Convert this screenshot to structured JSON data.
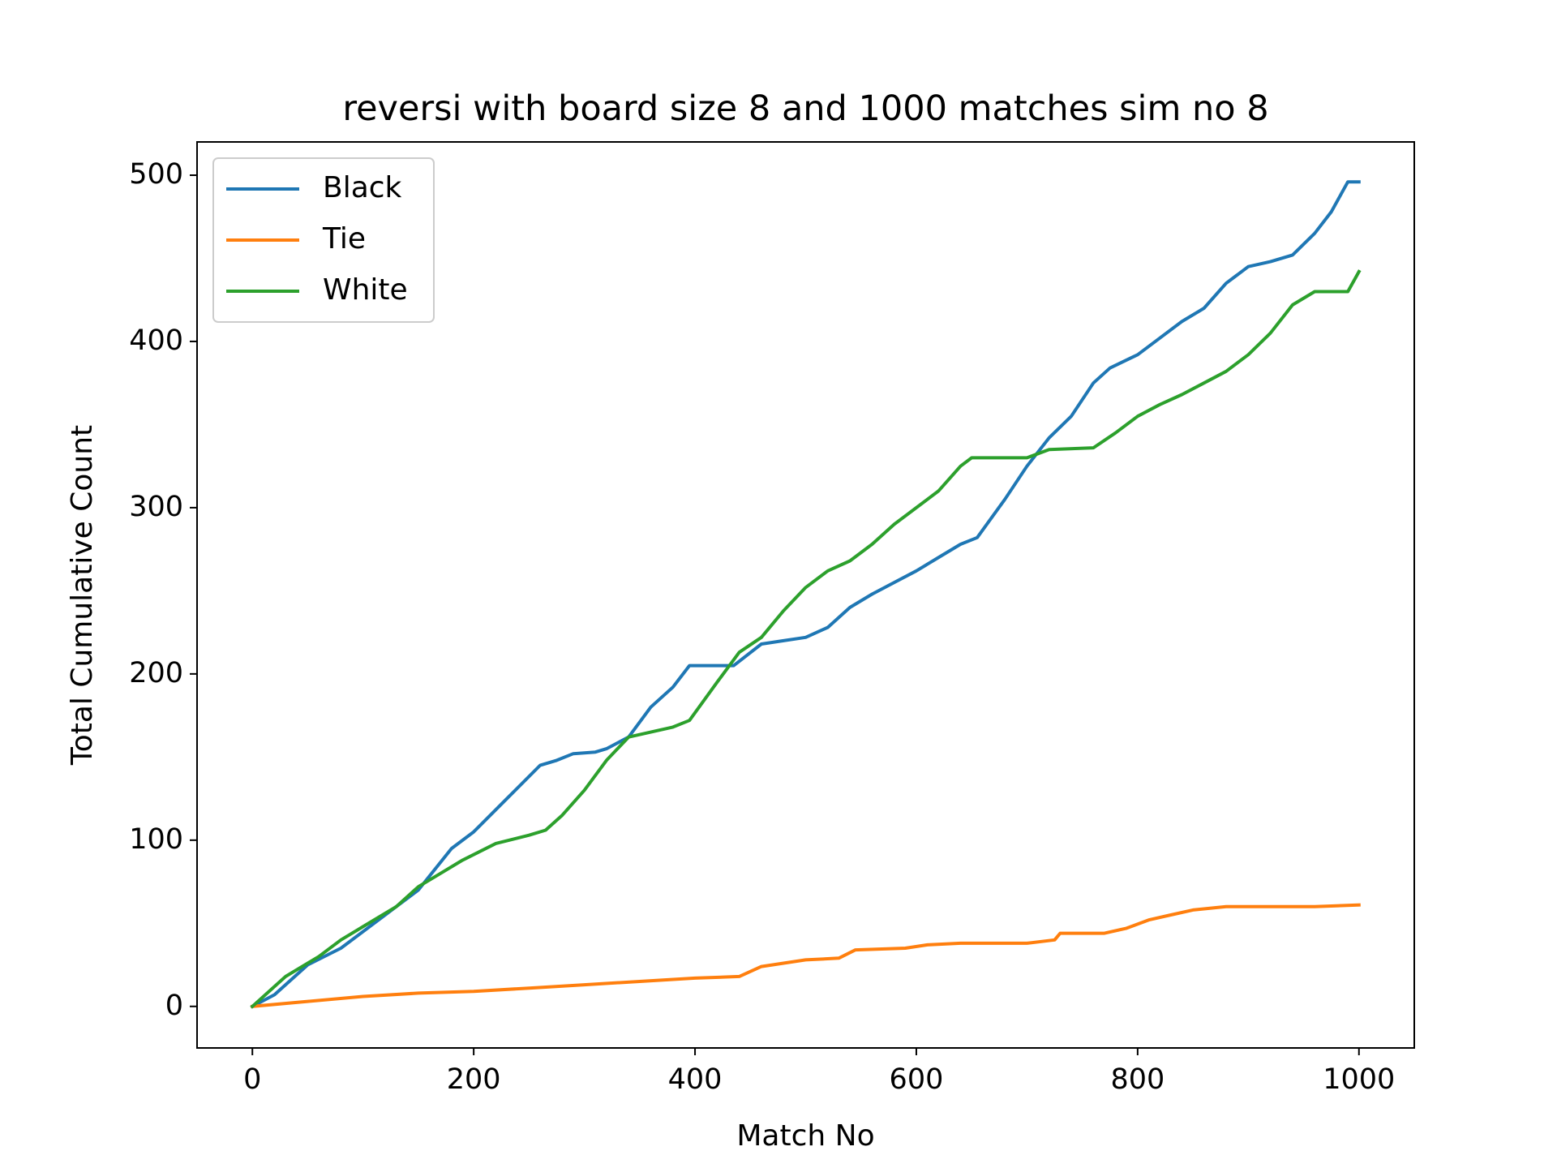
{
  "chart_data": {
    "type": "line",
    "title": "reversi with board size 8 and 1000 matches sim no 8",
    "xlabel": "Match No",
    "ylabel": "Total Cumulative Count",
    "xlim": [
      -50,
      1050
    ],
    "ylim": [
      -25,
      520
    ],
    "xticks": [
      0,
      200,
      400,
      600,
      800,
      1000
    ],
    "yticks": [
      0,
      100,
      200,
      300,
      400,
      500
    ],
    "grid": false,
    "legend": "upper-left",
    "series": [
      {
        "name": "Black",
        "color": "#1f77b4",
        "points": [
          [
            0,
            0
          ],
          [
            20,
            7
          ],
          [
            50,
            25
          ],
          [
            80,
            35
          ],
          [
            120,
            55
          ],
          [
            150,
            70
          ],
          [
            180,
            95
          ],
          [
            200,
            105
          ],
          [
            230,
            125
          ],
          [
            260,
            145
          ],
          [
            275,
            148
          ],
          [
            290,
            152
          ],
          [
            310,
            153
          ],
          [
            320,
            155
          ],
          [
            340,
            162
          ],
          [
            360,
            180
          ],
          [
            380,
            192
          ],
          [
            395,
            205
          ],
          [
            435,
            205
          ],
          [
            460,
            218
          ],
          [
            480,
            220
          ],
          [
            500,
            222
          ],
          [
            520,
            228
          ],
          [
            540,
            240
          ],
          [
            560,
            248
          ],
          [
            580,
            255
          ],
          [
            600,
            262
          ],
          [
            620,
            270
          ],
          [
            640,
            278
          ],
          [
            655,
            282
          ],
          [
            680,
            305
          ],
          [
            700,
            325
          ],
          [
            720,
            342
          ],
          [
            740,
            355
          ],
          [
            760,
            375
          ],
          [
            775,
            384
          ],
          [
            800,
            392
          ],
          [
            820,
            402
          ],
          [
            840,
            412
          ],
          [
            860,
            420
          ],
          [
            880,
            435
          ],
          [
            900,
            445
          ],
          [
            920,
            448
          ],
          [
            940,
            452
          ],
          [
            960,
            465
          ],
          [
            975,
            478
          ],
          [
            990,
            496
          ],
          [
            1000,
            496
          ]
        ]
      },
      {
        "name": "Tie",
        "color": "#ff7f0e",
        "points": [
          [
            0,
            0
          ],
          [
            50,
            3
          ],
          [
            100,
            6
          ],
          [
            150,
            8
          ],
          [
            200,
            9
          ],
          [
            250,
            11
          ],
          [
            300,
            13
          ],
          [
            350,
            15
          ],
          [
            400,
            17
          ],
          [
            440,
            18
          ],
          [
            460,
            24
          ],
          [
            480,
            26
          ],
          [
            500,
            28
          ],
          [
            530,
            29
          ],
          [
            545,
            34
          ],
          [
            590,
            35
          ],
          [
            610,
            37
          ],
          [
            640,
            38
          ],
          [
            700,
            38
          ],
          [
            725,
            40
          ],
          [
            730,
            44
          ],
          [
            770,
            44
          ],
          [
            790,
            47
          ],
          [
            810,
            52
          ],
          [
            830,
            55
          ],
          [
            850,
            58
          ],
          [
            880,
            60
          ],
          [
            960,
            60
          ],
          [
            1000,
            61
          ]
        ]
      },
      {
        "name": "White",
        "color": "#2ca02c",
        "points": [
          [
            0,
            0
          ],
          [
            30,
            18
          ],
          [
            60,
            30
          ],
          [
            80,
            40
          ],
          [
            100,
            48
          ],
          [
            130,
            60
          ],
          [
            150,
            72
          ],
          [
            170,
            80
          ],
          [
            190,
            88
          ],
          [
            220,
            98
          ],
          [
            250,
            103
          ],
          [
            265,
            106
          ],
          [
            280,
            115
          ],
          [
            300,
            130
          ],
          [
            320,
            148
          ],
          [
            340,
            162
          ],
          [
            360,
            165
          ],
          [
            380,
            168
          ],
          [
            395,
            172
          ],
          [
            420,
            195
          ],
          [
            440,
            213
          ],
          [
            460,
            222
          ],
          [
            480,
            238
          ],
          [
            500,
            252
          ],
          [
            520,
            262
          ],
          [
            540,
            268
          ],
          [
            560,
            278
          ],
          [
            580,
            290
          ],
          [
            600,
            300
          ],
          [
            620,
            310
          ],
          [
            640,
            325
          ],
          [
            650,
            330
          ],
          [
            700,
            330
          ],
          [
            720,
            335
          ],
          [
            760,
            336
          ],
          [
            780,
            345
          ],
          [
            800,
            355
          ],
          [
            820,
            362
          ],
          [
            840,
            368
          ],
          [
            860,
            375
          ],
          [
            880,
            382
          ],
          [
            900,
            392
          ],
          [
            920,
            405
          ],
          [
            940,
            422
          ],
          [
            960,
            430
          ],
          [
            990,
            430
          ],
          [
            1000,
            442
          ]
        ]
      }
    ]
  }
}
